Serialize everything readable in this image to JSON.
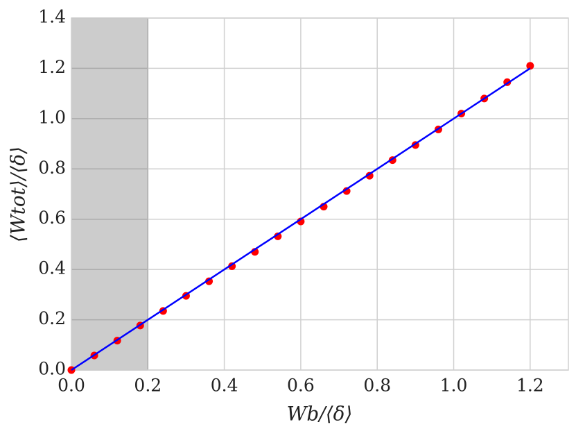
{
  "chart_data": {
    "type": "scatter",
    "x_label": "Wb/⟨δ⟩",
    "y_label": "⟨Wtot⟩/⟨δ⟩",
    "xlim": [
      0,
      1.3
    ],
    "ylim": [
      0,
      1.4
    ],
    "xticks": [
      {
        "value": 0,
        "label": "0.0"
      },
      0.2,
      0.4,
      0.6,
      0.8,
      {
        "value": 1,
        "label": "1.0"
      },
      1.2
    ],
    "yticks": [
      {
        "value": 0,
        "label": "0.0"
      },
      0.2,
      0.4,
      0.6,
      0.8,
      {
        "value": 1,
        "label": "1.0"
      },
      1.2,
      1.4
    ],
    "grid": true,
    "shade": {
      "x": [
        0,
        0.2
      ],
      "color": "#cccccc"
    },
    "series": [
      {
        "kind": "scatter",
        "color": "#ff0000",
        "x": [
          0,
          0.06,
          0.12,
          0.18,
          0.24,
          0.3,
          0.36,
          0.42,
          0.48,
          0.54,
          0.6,
          0.66,
          0.72,
          0.78,
          0.84,
          0.9,
          0.96,
          1.02,
          1.08,
          1.14,
          1.2
        ],
        "values": [
          0,
          0.058,
          0.117,
          0.177,
          0.235,
          0.295,
          0.353,
          0.413,
          0.47,
          0.532,
          0.591,
          0.65,
          0.712,
          0.773,
          0.835,
          0.895,
          0.957,
          1.02,
          1.08,
          1.145,
          1.21
        ]
      },
      {
        "kind": "line",
        "color": "#0000ff",
        "x": [
          0,
          1.2
        ],
        "values": [
          0,
          1.2
        ]
      }
    ]
  }
}
